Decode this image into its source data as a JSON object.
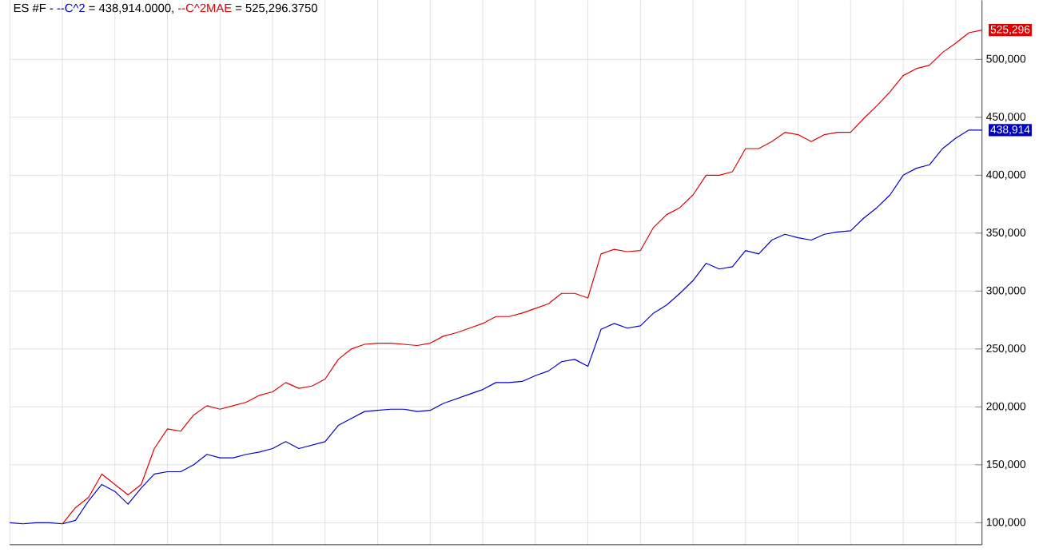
{
  "chart_data": {
    "type": "line",
    "title": "ES #F -",
    "categories": [
      null,
      null,
      null,
      null,
      null,
      null,
      null,
      null,
      null,
      null,
      null,
      null,
      null,
      null,
      null,
      null,
      null,
      null,
      null,
      null,
      null,
      null,
      null,
      null,
      null,
      null,
      null,
      null,
      null,
      null,
      null,
      null,
      null,
      null,
      null,
      null,
      null,
      null,
      null,
      null,
      null,
      null,
      null,
      null,
      null,
      null,
      null,
      null,
      null,
      null,
      null,
      null,
      null,
      null,
      null,
      null,
      null,
      null,
      null,
      null,
      null,
      null,
      null,
      null,
      null,
      null,
      null,
      null,
      null,
      null,
      null,
      null,
      null,
      null,
      null
    ],
    "series": [
      {
        "name": "--C^2",
        "color": "#0000cc",
        "values": [
          100000,
          99000,
          100000,
          100000,
          99000,
          102000,
          119000,
          133000,
          127000,
          116000,
          130000,
          142000,
          144000,
          144000,
          150000,
          159000,
          156000,
          156000,
          159000,
          161000,
          164000,
          170000,
          164000,
          167000,
          170000,
          184000,
          190000,
          196000,
          197000,
          198000,
          198000,
          196000,
          197000,
          203000,
          207000,
          211000,
          215000,
          221000,
          221000,
          222000,
          227000,
          231000,
          239000,
          241000,
          235000,
          267000,
          272000,
          268000,
          270000,
          281000,
          288000,
          298000,
          309000,
          324000,
          319000,
          321000,
          335000,
          332000,
          344000,
          349000,
          346000,
          344000,
          349000,
          351000,
          352000,
          363000,
          372000,
          383000,
          400000,
          406000,
          409000,
          423000,
          432000,
          439000,
          438914
        ],
        "value_labels": [
          null,
          null,
          null,
          null,
          null,
          null,
          null,
          null,
          null,
          null,
          null,
          null,
          null,
          null,
          null,
          null,
          null,
          null,
          null,
          null,
          null,
          null,
          null,
          null,
          null,
          null,
          null,
          null,
          null,
          null,
          null,
          null,
          null,
          null,
          null,
          null,
          null,
          null,
          null,
          null,
          null,
          null,
          null,
          null,
          null,
          null,
          null,
          null,
          null,
          null,
          null,
          null,
          null,
          null,
          null,
          null,
          null,
          null,
          null,
          null,
          null,
          null,
          null,
          null,
          null,
          null,
          null,
          null,
          null,
          null,
          null,
          null,
          null,
          null,
          "438,914"
        ]
      },
      {
        "name": "--C^2MAE",
        "color": "#e00000",
        "values": [
          null,
          null,
          null,
          null,
          99000,
          113000,
          122000,
          142000,
          133000,
          124000,
          133000,
          164000,
          181000,
          179000,
          193000,
          201000,
          198000,
          201000,
          204000,
          210000,
          213000,
          221000,
          216000,
          218000,
          224000,
          241000,
          250000,
          254000,
          255000,
          255000,
          254000,
          253000,
          255000,
          261000,
          264000,
          268000,
          272000,
          278000,
          278000,
          281000,
          285000,
          289000,
          298000,
          298000,
          294000,
          332000,
          336000,
          334000,
          335000,
          355000,
          366000,
          372000,
          383000,
          400000,
          400000,
          403000,
          423000,
          423000,
          429000,
          437000,
          435000,
          429000,
          435000,
          437000,
          437000,
          449000,
          460000,
          472000,
          486000,
          492000,
          495000,
          506000,
          514000,
          523000,
          525296
        ],
        "value_labels": [
          null,
          null,
          null,
          null,
          null,
          null,
          null,
          null,
          null,
          null,
          null,
          null,
          null,
          null,
          null,
          null,
          null,
          null,
          null,
          null,
          null,
          null,
          null,
          null,
          null,
          null,
          null,
          null,
          null,
          null,
          null,
          null,
          null,
          null,
          null,
          null,
          null,
          null,
          null,
          null,
          null,
          null,
          null,
          null,
          null,
          null,
          null,
          null,
          null,
          null,
          null,
          null,
          null,
          null,
          null,
          null,
          null,
          null,
          null,
          null,
          null,
          null,
          null,
          null,
          null,
          null,
          null,
          null,
          null,
          null,
          null,
          null,
          null,
          null,
          "525,296"
        ]
      }
    ],
    "annotations": [
      "= 438,914.0000,",
      "= 525,296.3750"
    ],
    "ylim": [
      81000,
      551000
    ],
    "yticks": [
      {
        "value": 100000,
        "label": "100,000"
      },
      {
        "value": 150000,
        "label": "150,000"
      },
      {
        "value": 200000,
        "label": "200,000"
      },
      {
        "value": 250000,
        "label": "250,000"
      },
      {
        "value": 300000,
        "label": "300,000"
      },
      {
        "value": 350000,
        "label": "350,000"
      },
      {
        "value": 400000,
        "label": "400,000"
      },
      {
        "value": 450000,
        "label": "450,000"
      },
      {
        "value": 500000,
        "label": "500,000"
      }
    ],
    "grid": true,
    "legend": "top left",
    "tick_labels": "y"
  }
}
